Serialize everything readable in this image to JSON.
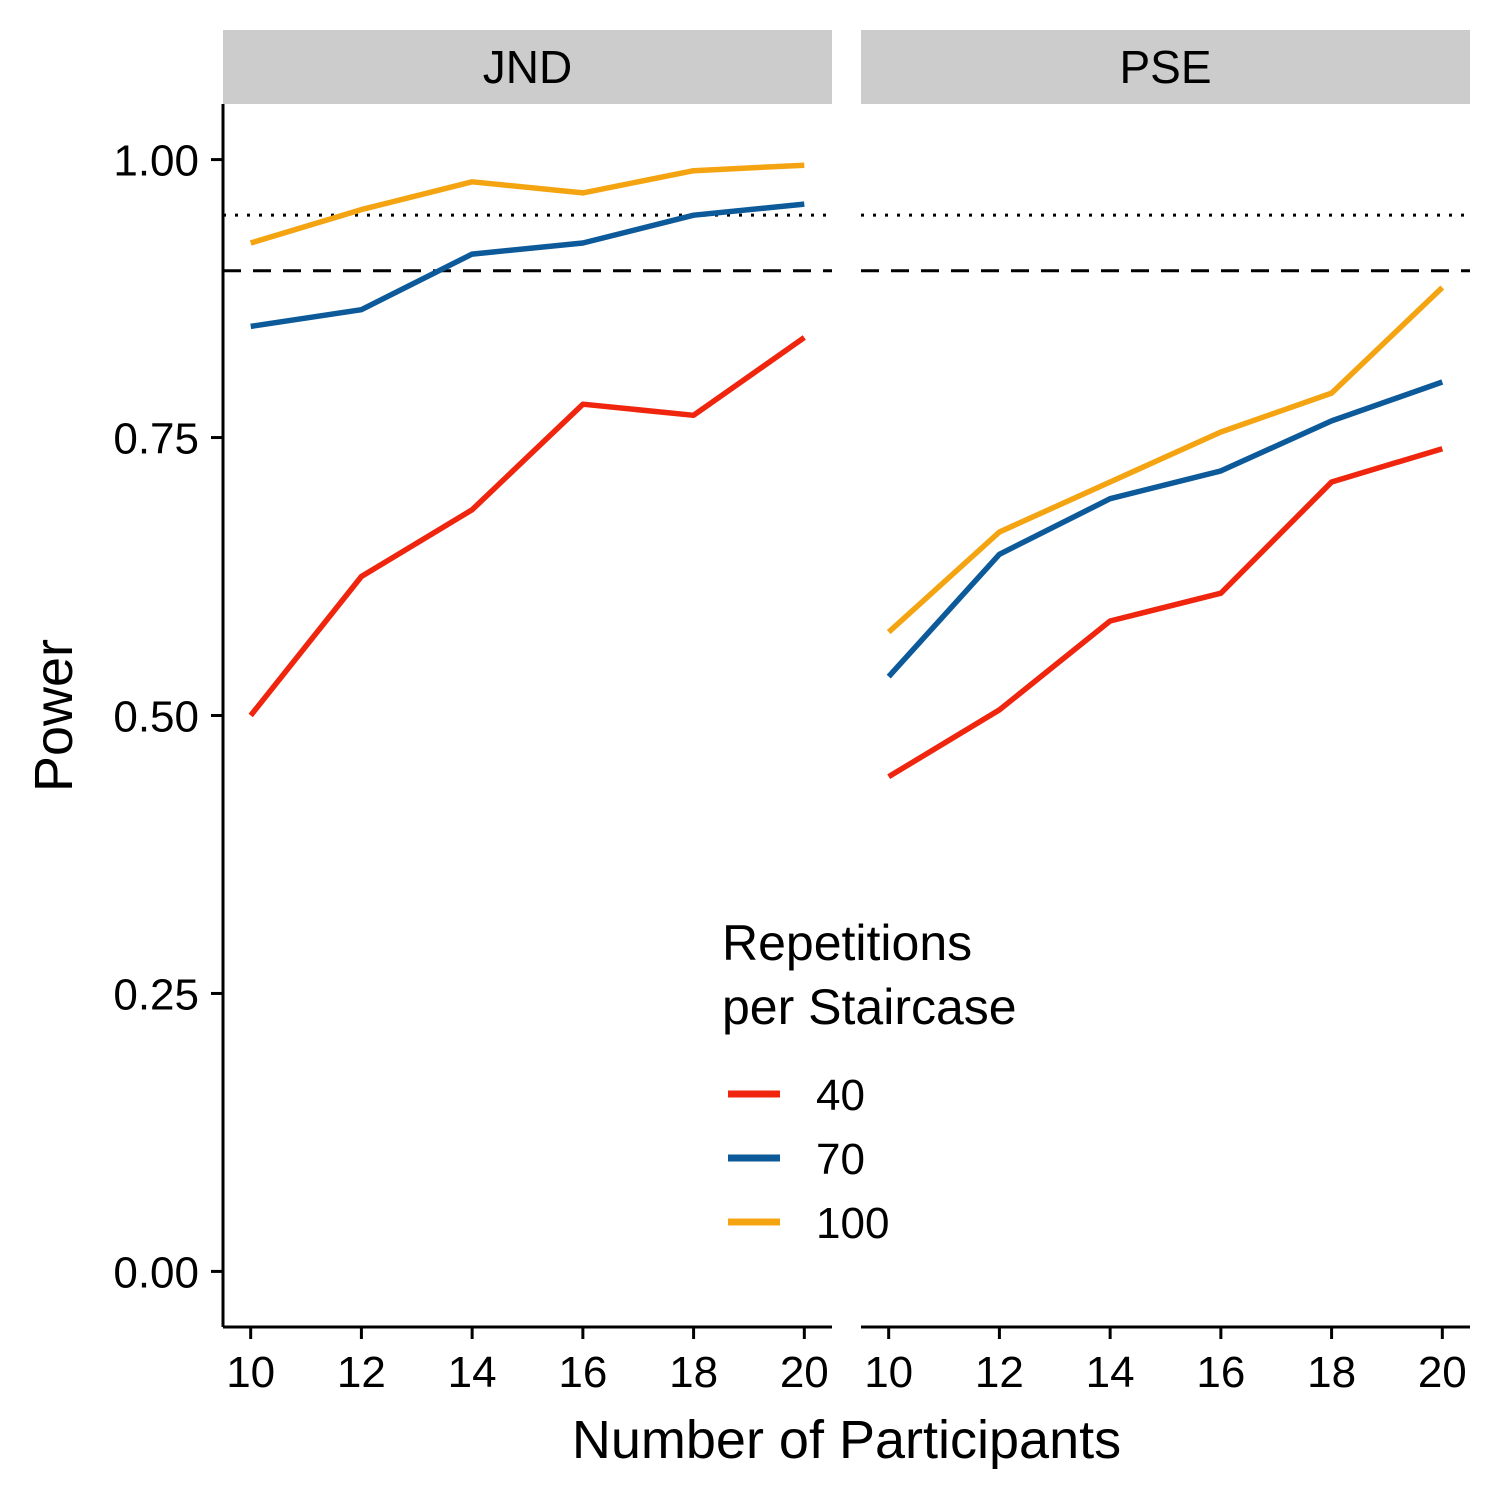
{
  "chart_data": {
    "type": "line",
    "xlabel": "Number of Participants",
    "ylabel": "Power",
    "xlim": [
      9.5,
      20.5
    ],
    "ylim": [
      -0.05,
      1.05
    ],
    "x_ticks": [
      "10",
      "12",
      "14",
      "16",
      "18",
      "20"
    ],
    "y_ticks": [
      "0.00",
      "0.25",
      "0.50",
      "0.75",
      "1.00"
    ],
    "reference_lines": [
      {
        "y": 0.95,
        "style": "dotted"
      },
      {
        "y": 0.9,
        "style": "dashed"
      }
    ],
    "legend": {
      "title_line1": "Repetitions",
      "title_line2": "per Staircase",
      "placement": "bottom-center",
      "entries": [
        "40",
        "70",
        "100"
      ]
    },
    "colors": {
      "40": "#f0250e",
      "70": "#0c5a9a",
      "100": "#f5a411"
    },
    "panels": [
      {
        "title": "JND",
        "x": [
          10,
          12,
          14,
          16,
          18,
          20
        ],
        "series": [
          {
            "name": "40",
            "values": [
              0.5,
              0.625,
              0.685,
              0.78,
              0.77,
              0.84
            ]
          },
          {
            "name": "70",
            "values": [
              0.85,
              0.865,
              0.915,
              0.925,
              0.95,
              0.96
            ]
          },
          {
            "name": "100",
            "values": [
              0.925,
              0.955,
              0.98,
              0.97,
              0.99,
              0.995
            ]
          }
        ]
      },
      {
        "title": "PSE",
        "x": [
          10,
          12,
          14,
          16,
          18,
          20
        ],
        "series": [
          {
            "name": "40",
            "values": [
              0.445,
              0.505,
              0.585,
              0.61,
              0.71,
              0.74
            ]
          },
          {
            "name": "70",
            "values": [
              0.535,
              0.645,
              0.695,
              0.72,
              0.765,
              0.8
            ]
          },
          {
            "name": "100",
            "values": [
              0.575,
              0.665,
              0.71,
              0.755,
              0.79,
              0.885
            ]
          }
        ]
      }
    ]
  }
}
